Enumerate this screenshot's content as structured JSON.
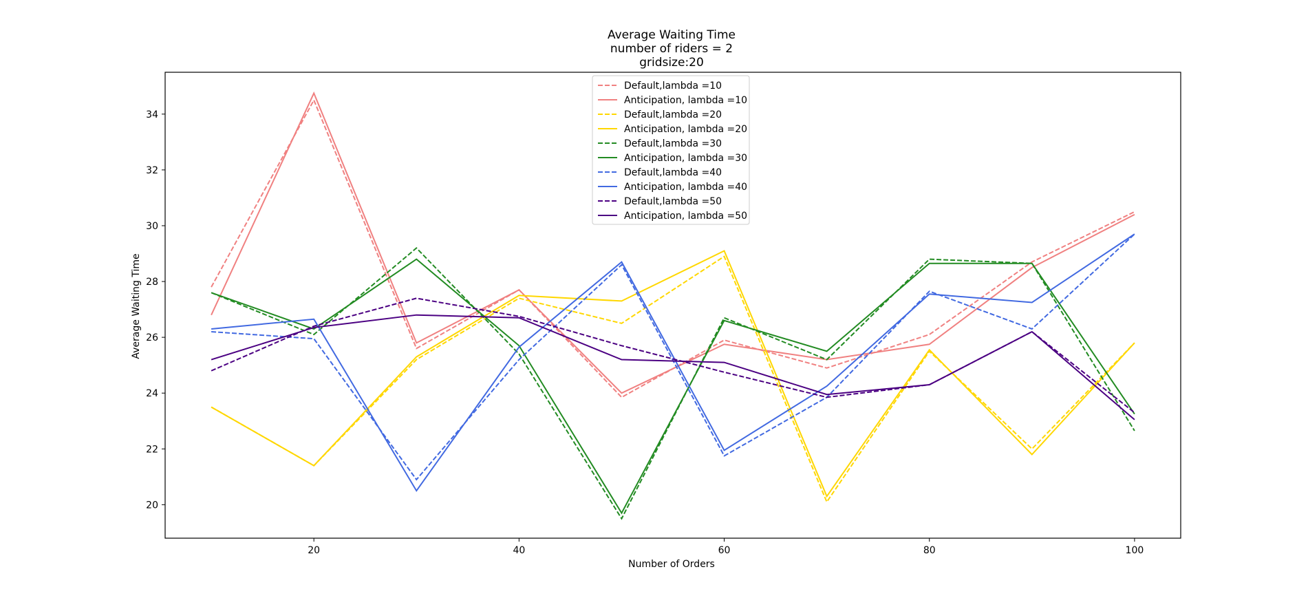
{
  "chart_data": {
    "type": "line",
    "title_lines": [
      "Average Waiting Time",
      "number of riders = 2",
      "gridsize:20"
    ],
    "xlabel": "Number of Orders",
    "ylabel": "Average Waiting Time",
    "x": [
      10,
      20,
      30,
      40,
      50,
      60,
      70,
      80,
      90,
      100
    ],
    "xlim": [
      5.5,
      104.5
    ],
    "ylim": [
      18.8,
      35.5
    ],
    "xticks": [
      20,
      40,
      60,
      80,
      100
    ],
    "yticks": [
      20,
      22,
      24,
      26,
      28,
      30,
      32,
      34
    ],
    "grid": false,
    "legend_position": "upper center",
    "series": [
      {
        "name": "Default,lambda =10",
        "color": "#f08080",
        "dash": true,
        "values": [
          27.8,
          34.5,
          25.6,
          27.7,
          23.85,
          25.9,
          24.9,
          26.1,
          28.7,
          30.5
        ]
      },
      {
        "name": "Anticipation, lambda =10",
        "color": "#f08080",
        "dash": false,
        "values": [
          26.8,
          34.75,
          25.8,
          27.7,
          24.0,
          25.75,
          25.2,
          25.75,
          28.5,
          30.4
        ]
      },
      {
        "name": "Default,lambda =20",
        "color": "#ffd700",
        "dash": true,
        "values": [
          23.5,
          21.4,
          25.2,
          27.4,
          26.5,
          28.9,
          20.1,
          25.5,
          22.0,
          25.8
        ]
      },
      {
        "name": "Anticipation, lambda =20",
        "color": "#ffd700",
        "dash": false,
        "values": [
          23.5,
          21.4,
          25.3,
          27.5,
          27.3,
          29.1,
          20.3,
          25.55,
          21.8,
          25.8
        ]
      },
      {
        "name": "Default,lambda =30",
        "color": "#228b22",
        "dash": true,
        "values": [
          27.6,
          26.1,
          29.2,
          25.4,
          19.5,
          26.7,
          25.2,
          28.8,
          28.65,
          22.65
        ]
      },
      {
        "name": "Anticipation, lambda =30",
        "color": "#228b22",
        "dash": false,
        "values": [
          27.6,
          26.3,
          28.8,
          25.7,
          19.7,
          26.6,
          25.5,
          28.65,
          28.65,
          23.25
        ]
      },
      {
        "name": "Default,lambda =40",
        "color": "#4169e1",
        "dash": true,
        "values": [
          26.2,
          25.95,
          20.9,
          25.2,
          28.6,
          21.75,
          23.85,
          27.65,
          26.3,
          29.7
        ]
      },
      {
        "name": "Anticipation, lambda =40",
        "color": "#4169e1",
        "dash": false,
        "values": [
          26.3,
          26.65,
          20.5,
          25.65,
          28.7,
          21.95,
          24.25,
          27.55,
          27.25,
          29.7
        ]
      },
      {
        "name": "Default,lambda =50",
        "color": "#4b0082",
        "dash": true,
        "values": [
          24.8,
          26.4,
          27.4,
          26.75,
          25.7,
          24.75,
          23.85,
          24.3,
          26.2,
          23.3
        ]
      },
      {
        "name": "Anticipation, lambda =50",
        "color": "#4b0082",
        "dash": false,
        "values": [
          25.2,
          26.35,
          26.8,
          26.7,
          25.2,
          25.1,
          23.95,
          24.3,
          26.2,
          23.05
        ]
      }
    ]
  }
}
